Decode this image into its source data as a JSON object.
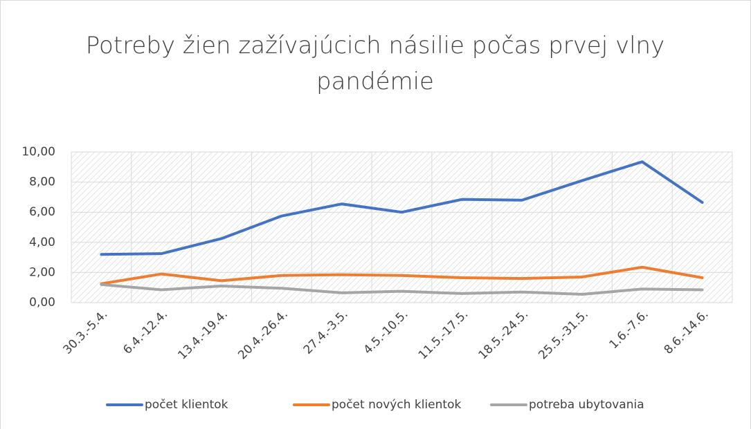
{
  "chart_data": {
    "type": "line",
    "title": "Potreby žien zažívajúcich násilie počas prvej vlny pandémie",
    "categories": [
      "30.3.-5.4.",
      "6.4.-12.4.",
      "13.4.-19.4.",
      "20.4.-26.4.",
      "27.4.-3.5.",
      "4.5.-10.5.",
      "11.5.-17.5.",
      "18.5.-24.5.",
      "25.5.-31.5.",
      "1.6.-7.6.",
      "8.6.-14.6."
    ],
    "series": [
      {
        "name": "počet klientok",
        "color": "#4472c4",
        "values": [
          3.2,
          3.25,
          4.25,
          5.75,
          6.55,
          6.0,
          6.85,
          6.8,
          8.1,
          9.35,
          6.65
        ]
      },
      {
        "name": "počet nových klientok",
        "color": "#ed7d31",
        "values": [
          1.25,
          1.9,
          1.45,
          1.8,
          1.85,
          1.8,
          1.65,
          1.6,
          1.7,
          2.35,
          1.65
        ]
      },
      {
        "name": "potreba ubytovania",
        "color": "#a5a5a5",
        "values": [
          1.2,
          0.85,
          1.1,
          0.95,
          0.65,
          0.75,
          0.6,
          0.7,
          0.55,
          0.9,
          0.85
        ]
      }
    ],
    "ylim": [
      0,
      10
    ],
    "yticks": [
      {
        "value": 0,
        "label": "0,00"
      },
      {
        "value": 2,
        "label": "2,00"
      },
      {
        "value": 4,
        "label": "4,00"
      },
      {
        "value": 6,
        "label": "6,00"
      },
      {
        "value": 8,
        "label": "8,00"
      },
      {
        "value": 10,
        "label": "10,00"
      }
    ],
    "grid": true,
    "legend": "bottom"
  }
}
